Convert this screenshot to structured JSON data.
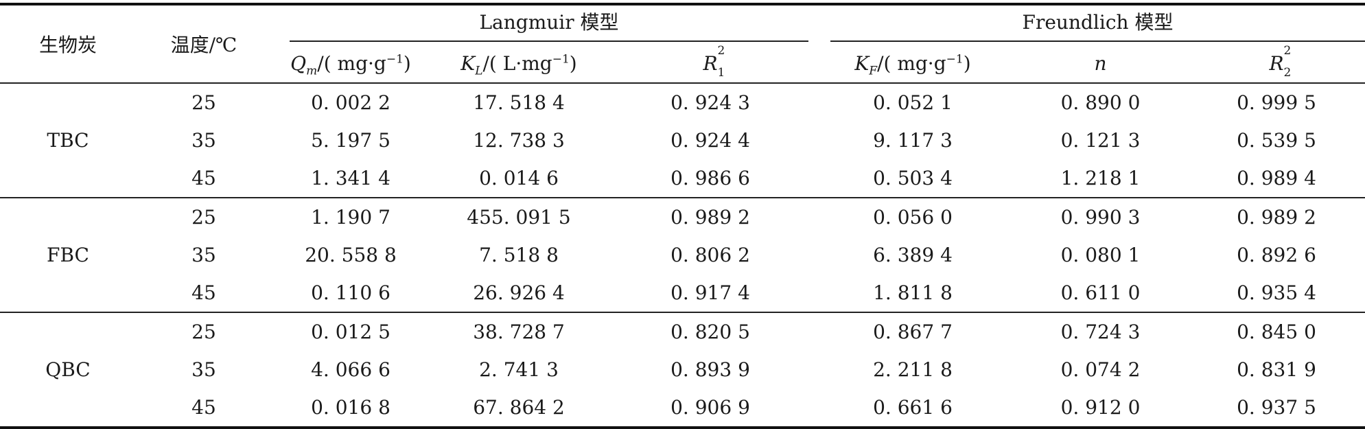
{
  "headers": {
    "biochar": "生物炭",
    "temperature": "温度/℃",
    "langmuir_group": "Langmuir 模型",
    "freundlich_group": "Freundlich 模型",
    "qm": {
      "sym": "Q",
      "sub": "m",
      "unit_pre": "/( mg·g",
      "sup": "−1",
      "unit_post": ")"
    },
    "kl": {
      "sym": "K",
      "sub": "L",
      "unit_pre": "/( L·mg",
      "sup": "−1",
      "unit_post": ")"
    },
    "r1": {
      "sym": "R",
      "sup": "2",
      "sub": "1"
    },
    "kf": {
      "sym": "K",
      "sub": "F",
      "unit_pre": "/( mg·g",
      "sup": "−1",
      "unit_post": ")"
    },
    "n": "n",
    "r2": {
      "sym": "R",
      "sup": "2",
      "sub": "2"
    }
  },
  "groups": [
    {
      "name": "TBC",
      "rows": [
        {
          "temp": "25",
          "qm": "0. 002 2",
          "kl": "17. 518 4",
          "r1": "0. 924 3",
          "kf": "0. 052 1",
          "n": "0. 890 0",
          "r2": "0. 999 5"
        },
        {
          "temp": "35",
          "qm": "5. 197 5",
          "kl": "12. 738 3",
          "r1": "0. 924 4",
          "kf": "9. 117 3",
          "n": "0. 121 3",
          "r2": "0. 539 5"
        },
        {
          "temp": "45",
          "qm": "1. 341 4",
          "kl": "0. 014 6",
          "r1": "0. 986 6",
          "kf": "0. 503 4",
          "n": "1. 218 1",
          "r2": "0. 989 4"
        }
      ]
    },
    {
      "name": "FBC",
      "rows": [
        {
          "temp": "25",
          "qm": "1. 190 7",
          "kl": "455. 091 5",
          "r1": "0. 989 2",
          "kf": "0. 056 0",
          "n": "0. 990 3",
          "r2": "0. 989 2"
        },
        {
          "temp": "35",
          "qm": "20. 558 8",
          "kl": "7. 518 8",
          "r1": "0. 806 2",
          "kf": "6. 389 4",
          "n": "0. 080 1",
          "r2": "0. 892 6"
        },
        {
          "temp": "45",
          "qm": "0. 110 6",
          "kl": "26. 926 4",
          "r1": "0. 917 4",
          "kf": "1. 811 8",
          "n": "0. 611 0",
          "r2": "0. 935 4"
        }
      ]
    },
    {
      "name": "QBC",
      "rows": [
        {
          "temp": "25",
          "qm": "0. 012 5",
          "kl": "38. 728 7",
          "r1": "0. 820 5",
          "kf": "0. 867 7",
          "n": "0. 724 3",
          "r2": "0. 845 0"
        },
        {
          "temp": "35",
          "qm": "4. 066 6",
          "kl": "2. 741 3",
          "r1": "0. 893 9",
          "kf": "2. 211 8",
          "n": "0. 074 2",
          "r2": "0. 831 9"
        },
        {
          "temp": "45",
          "qm": "0. 016 8",
          "kl": "67. 864 2",
          "r1": "0. 906 9",
          "kf": "0. 661 6",
          "n": "0. 912 0",
          "r2": "0. 937 5"
        }
      ]
    }
  ]
}
